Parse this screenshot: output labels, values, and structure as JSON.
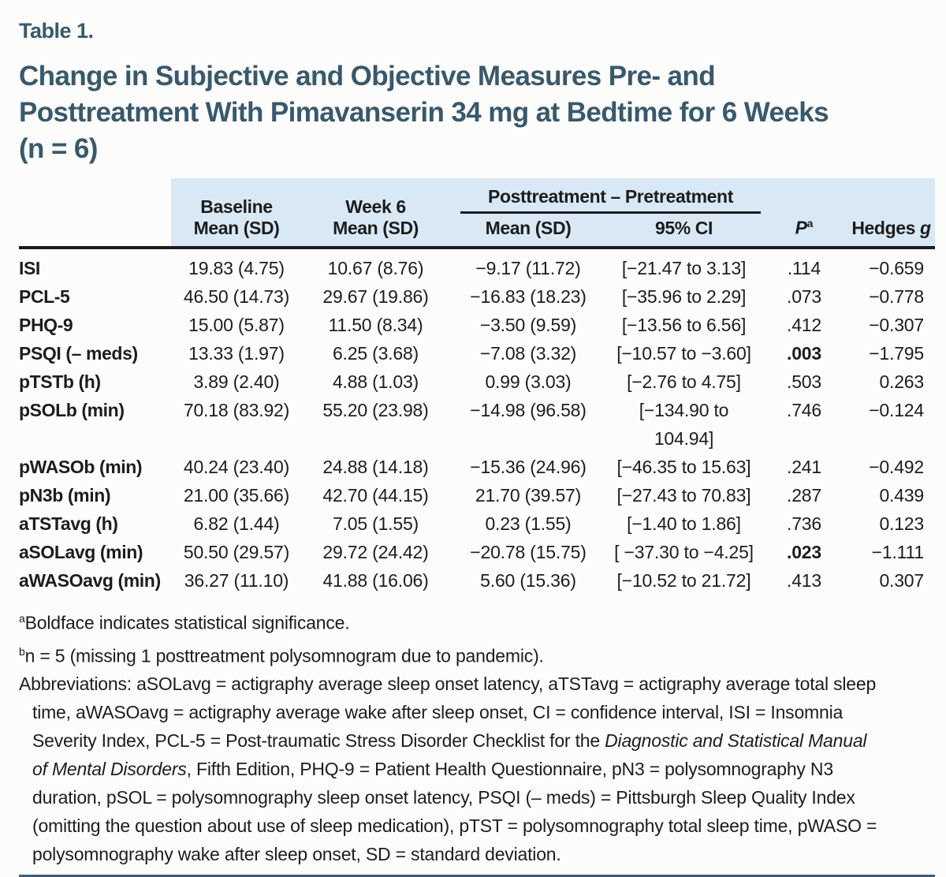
{
  "colors": {
    "page_bg": "#fcfcfa",
    "title_text": "#37596e",
    "header_bg": "#d9e8f5",
    "rule_dark": "#1c1c1c",
    "rule_blue": "#3e5f7a",
    "body_text": "#1d1d1d"
  },
  "table_label": "Table 1.",
  "title_lines": [
    "Change in Subjective and Objective Measures Pre- and",
    "Posttreatment With Pimavanserin 34 mg at Bedtime for 6 Weeks",
    "(n = 6)"
  ],
  "header": {
    "baseline_l1": "Baseline",
    "baseline_l2": "Mean (SD)",
    "week6_l1": "Week 6",
    "week6_l2": "Mean (SD)",
    "spanner": "Posttreatment – Pretreatment",
    "diff_mean": "Mean (SD)",
    "ci": "95% CI",
    "p": "P",
    "p_sup": "a",
    "hedges": "Hedges ",
    "hedges_g": "g"
  },
  "rows": [
    {
      "label": "ISI",
      "baseline": "19.83 (4.75)",
      "week6": "10.67 (8.76)",
      "diff": "−9.17 (11.72)",
      "ci": "[−21.47 to 3.13]",
      "p": ".114",
      "p_bold": false,
      "hedges": "−0.659"
    },
    {
      "label": "PCL-5",
      "baseline": "46.50 (14.73)",
      "week6": "29.67 (19.86)",
      "diff": "−16.83 (18.23)",
      "ci": "[−35.96 to 2.29]",
      "p": ".073",
      "p_bold": false,
      "hedges": "−0.778"
    },
    {
      "label": "PHQ-9",
      "baseline": "15.00 (5.87)",
      "week6": "11.50 (8.34)",
      "diff": "−3.50 (9.59)",
      "ci": "[−13.56 to 6.56]",
      "p": ".412",
      "p_bold": false,
      "hedges": "−0.307"
    },
    {
      "label": "PSQI (– meds)",
      "baseline": "13.33 (1.97)",
      "week6": "6.25 (3.68)",
      "diff": "−7.08 (3.32)",
      "ci": "[−10.57 to −3.60]",
      "p": ".003",
      "p_bold": true,
      "hedges": "−1.795"
    },
    {
      "label": "pTSTb (h)",
      "baseline": "3.89 (2.40)",
      "week6": "4.88 (1.03)",
      "diff": "0.99 (3.03)",
      "ci": "[−2.76 to 4.75]",
      "p": ".503",
      "p_bold": false,
      "hedges": "0.263"
    },
    {
      "label": "pSOLb (min)",
      "baseline": "70.18 (83.92)",
      "week6": "55.20 (23.98)",
      "diff": "−14.98 (96.58)",
      "ci": "[−134.90 to 104.94]",
      "p": ".746",
      "p_bold": false,
      "hedges": "−0.124"
    },
    {
      "label": "pWASOb (min)",
      "baseline": "40.24 (23.40)",
      "week6": "24.88 (14.18)",
      "diff": "−15.36 (24.96)",
      "ci": "[−46.35 to 15.63]",
      "p": ".241",
      "p_bold": false,
      "hedges": "−0.492"
    },
    {
      "label": "pN3b (min)",
      "baseline": "21.00 (35.66)",
      "week6": "42.70 (44.15)",
      "diff": "21.70 (39.57)",
      "ci": "[−27.43 to 70.83]",
      "p": ".287",
      "p_bold": false,
      "hedges": "0.439"
    },
    {
      "label": "aTSTavg (h)",
      "baseline": "6.82 (1.44)",
      "week6": "7.05 (1.55)",
      "diff": "0.23 (1.55)",
      "ci": "[−1.40 to 1.86]",
      "p": ".736",
      "p_bold": false,
      "hedges": "0.123"
    },
    {
      "label": "aSOLavg (min)",
      "baseline": "50.50 (29.57)",
      "week6": "29.72 (24.42)",
      "diff": "−20.78 (15.75)",
      "ci": "[ −37.30 to −4.25]",
      "p": ".023",
      "p_bold": true,
      "hedges": "−1.111"
    },
    {
      "label": "aWASOavg (min)",
      "baseline": "36.27 (11.10)",
      "week6": "41.88 (16.06)",
      "diff": "5.60 (15.36)",
      "ci": "[−10.52 to 21.72]",
      "p": ".413",
      "p_bold": false,
      "hedges": "0.307"
    }
  ],
  "footnotes": {
    "a_sup": "a",
    "a_text": "Boldface indicates statistical significance.",
    "b_sup": "b",
    "b_text": "n = 5 (missing 1 posttreatment polysomnogram due to pandemic).",
    "abbr_part1": "Abbreviations: aSOLavg = actigraphy average sleep onset latency, aTSTavg = actigraphy average total sleep time, aWASOavg = actigraphy average wake after sleep onset, CI = confidence interval, ISI = Insomnia Severity Index, PCL-5 = Post-traumatic Stress Disorder Checklist for the ",
    "abbr_italic": "Diagnostic and Statistical Manual of Mental Disorders",
    "abbr_part2": ", Fifth Edition, PHQ-9 = Patient Health Questionnaire, pN3 = polysomnography N3 duration, pSOL = polysomnography sleep onset latency, PSQI (– meds) = Pittsburgh Sleep Quality Index (omitting the question about use of sleep medication), pTST = polysomnography total sleep time, pWASO = polysomnography wake after sleep onset, SD = standard deviation."
  }
}
